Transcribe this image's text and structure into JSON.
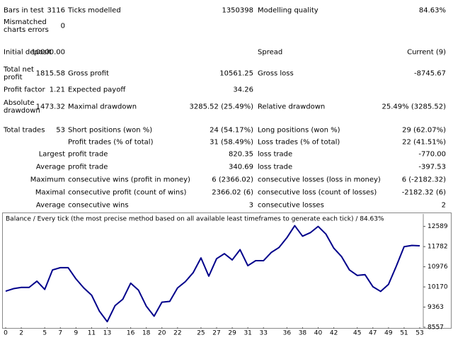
{
  "report": {
    "rows": [
      [
        "Bars in test",
        "3116",
        "Ticks modelled",
        "1350398",
        "Modelling quality",
        "84.63%"
      ],
      [
        "Mismatched charts errors",
        "0"
      ],
      [
        "Initial deposit",
        "10000.00",
        "Spread",
        "Current (9)"
      ],
      [
        "Total net profit",
        "1815.58",
        "Gross profit",
        "10561.25",
        "Gross loss",
        "-8745.67"
      ],
      [
        "Profit factor",
        "1.21",
        "Expected payoff",
        "34.26"
      ],
      [
        "Absolute drawdown",
        "1473.32",
        "Maximal drawdown",
        "3285.52 (25.49%)",
        "Relative drawdown",
        "25.49% (3285.52)"
      ],
      [
        "Total trades",
        "53",
        "Short positions (won %)",
        "24 (54.17%)",
        "Long positions (won %)",
        "29 (62.07%)"
      ],
      [
        "Profit trades (% of total)",
        "31 (58.49%)",
        "Loss trades (% of total)",
        "22 (41.51%)"
      ],
      [
        "Largest",
        "profit trade",
        "820.35",
        "loss trade",
        "-770.00"
      ],
      [
        "Average",
        "profit trade",
        "340.69",
        "loss trade",
        "-397.53"
      ],
      [
        "Maximum",
        "consecutive wins (profit in money)",
        "6 (2366.02)",
        "consecutive losses (loss in money)",
        "6 (-2182.32)"
      ],
      [
        "Maximal",
        "consecutive profit (count of wins)",
        "2366.02 (6)",
        "consecutive loss (count of losses)",
        "-2182.32 (6)"
      ],
      [
        "Average",
        "consecutive wins",
        "3",
        "consecutive losses",
        "2"
      ]
    ]
  },
  "chart_data": {
    "type": "line",
    "title": "Balance / Every tick (the most precise method based on all available least timeframes to generate each tick) / 84.63%",
    "x": [
      0,
      1,
      2,
      3,
      4,
      5,
      6,
      7,
      8,
      9,
      10,
      11,
      12,
      13,
      14,
      15,
      16,
      17,
      18,
      19,
      20,
      21,
      22,
      23,
      24,
      25,
      26,
      27,
      28,
      29,
      30,
      31,
      32,
      33,
      34,
      35,
      36,
      37,
      38,
      39,
      40,
      41,
      42,
      43,
      44,
      45,
      46,
      47,
      48,
      49,
      50,
      51,
      52,
      53
    ],
    "series": [
      {
        "name": "Balance",
        "color": "#00008b",
        "values": [
          10000,
          10100,
          10150,
          10150,
          10400,
          10070,
          10850,
          10940,
          10940,
          10490,
          10130,
          9840,
          9200,
          8780,
          9420,
          9680,
          10320,
          10040,
          9400,
          9000,
          9560,
          9590,
          10130,
          10380,
          10740,
          11330,
          10600,
          11300,
          11500,
          11250,
          11660,
          11020,
          11220,
          11220,
          11550,
          11750,
          12140,
          12620,
          12200,
          12340,
          12590,
          12280,
          11720,
          11380,
          10850,
          10630,
          10660,
          10180,
          9990,
          10270,
          11000,
          11780,
          11830,
          11815.58
        ]
      }
    ],
    "xlim": [
      0,
      53
    ],
    "xticks": [
      0,
      2,
      5,
      7,
      9,
      11,
      13,
      16,
      18,
      20,
      22,
      25,
      27,
      29,
      31,
      33,
      36,
      38,
      40,
      42,
      45,
      47,
      49,
      51,
      53
    ],
    "ylim": [
      8557,
      13090
    ],
    "yticks": [
      8557,
      9363,
      10170,
      10976,
      11782,
      12589
    ]
  }
}
